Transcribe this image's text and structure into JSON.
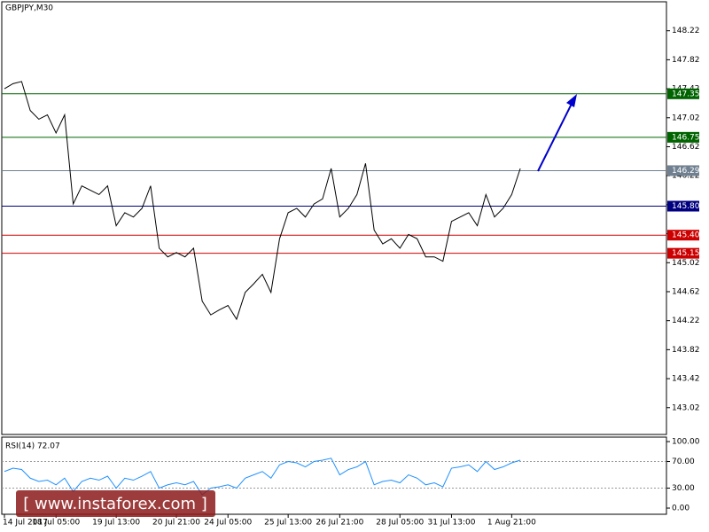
{
  "chart_data": [
    {
      "type": "line",
      "title": "GBPJPY,M30",
      "color": "#000000",
      "values": [
        147.42,
        147.49,
        147.52,
        147.12,
        147.0,
        147.06,
        146.81,
        147.06,
        145.83,
        146.08,
        146.02,
        145.96,
        146.08,
        145.53,
        145.71,
        145.65,
        145.77,
        146.08,
        145.22,
        145.1,
        145.16,
        145.1,
        145.22,
        144.49,
        144.3,
        144.37,
        144.43,
        144.24,
        144.61,
        144.73,
        144.86,
        144.61,
        145.35,
        145.71,
        145.77,
        145.65,
        145.83,
        145.9,
        146.32,
        145.65,
        145.77,
        145.96,
        146.39,
        145.47,
        145.28,
        145.35,
        145.22,
        145.41,
        145.35,
        145.1,
        145.1,
        145.04,
        145.59,
        145.65,
        145.71,
        145.53,
        145.96,
        145.65,
        145.77,
        145.96,
        146.32
      ],
      "xlim": [
        0,
        77
      ],
      "xticks": [
        {
          "value": 0,
          "label": "14 Jul 2017"
        },
        {
          "value": 6,
          "label": "18 Jul 05:00"
        },
        {
          "value": 13,
          "label": "19 Jul 13:00"
        },
        {
          "value": 20,
          "label": "20 Jul 21:00"
        },
        {
          "value": 26,
          "label": "24 Jul 05:00"
        },
        {
          "value": 33,
          "label": "25 Jul 13:00"
        },
        {
          "value": 39,
          "label": "26 Jul 21:00"
        },
        {
          "value": 46,
          "label": "28 Jul 05:00"
        },
        {
          "value": 52,
          "label": "31 Jul 13:00"
        },
        {
          "value": 59,
          "label": "1 Aug 21:00"
        }
      ],
      "ylim": [
        142.65,
        148.62
      ],
      "yticks": [
        148.22,
        147.82,
        147.42,
        147.02,
        146.62,
        146.22,
        145.82,
        145.42,
        145.02,
        144.62,
        144.22,
        143.82,
        143.42,
        143.02
      ],
      "levels": [
        {
          "value": 147.35,
          "label": "147.35",
          "color": "#006400"
        },
        {
          "value": 146.75,
          "label": "146.75",
          "color": "#006400"
        },
        {
          "value": 146.29,
          "label": "146.29",
          "color": "#708090"
        },
        {
          "value": 145.8,
          "label": "145.80",
          "color": "#000080"
        },
        {
          "value": 145.4,
          "label": "145.40",
          "color": "#cc0000"
        },
        {
          "value": 145.15,
          "label": "145.15",
          "color": "#cc0000"
        }
      ]
    },
    {
      "type": "line",
      "title": "RSI(14) 72.07",
      "color": "#1e90ff",
      "values": [
        55,
        60,
        58,
        45,
        40,
        42,
        35,
        45,
        25,
        40,
        45,
        42,
        48,
        30,
        45,
        42,
        48,
        55,
        30,
        35,
        38,
        35,
        40,
        20,
        30,
        32,
        35,
        30,
        45,
        50,
        55,
        45,
        65,
        70,
        68,
        62,
        70,
        72,
        75,
        50,
        58,
        62,
        70,
        35,
        40,
        42,
        38,
        50,
        45,
        35,
        38,
        32,
        60,
        62,
        65,
        55,
        70,
        58,
        62,
        68,
        72.07
      ],
      "xlim": [
        0,
        77
      ],
      "ylim": [
        -9.3,
        106.7
      ],
      "yticks": [
        {
          "value": 100,
          "label": "100.00"
        },
        {
          "value": 70,
          "label": "70.00"
        },
        {
          "value": 30,
          "label": "30.00"
        },
        {
          "value": 0,
          "label": "0.00"
        }
      ]
    }
  ],
  "watermark": "[  www.instaforex.com ]"
}
